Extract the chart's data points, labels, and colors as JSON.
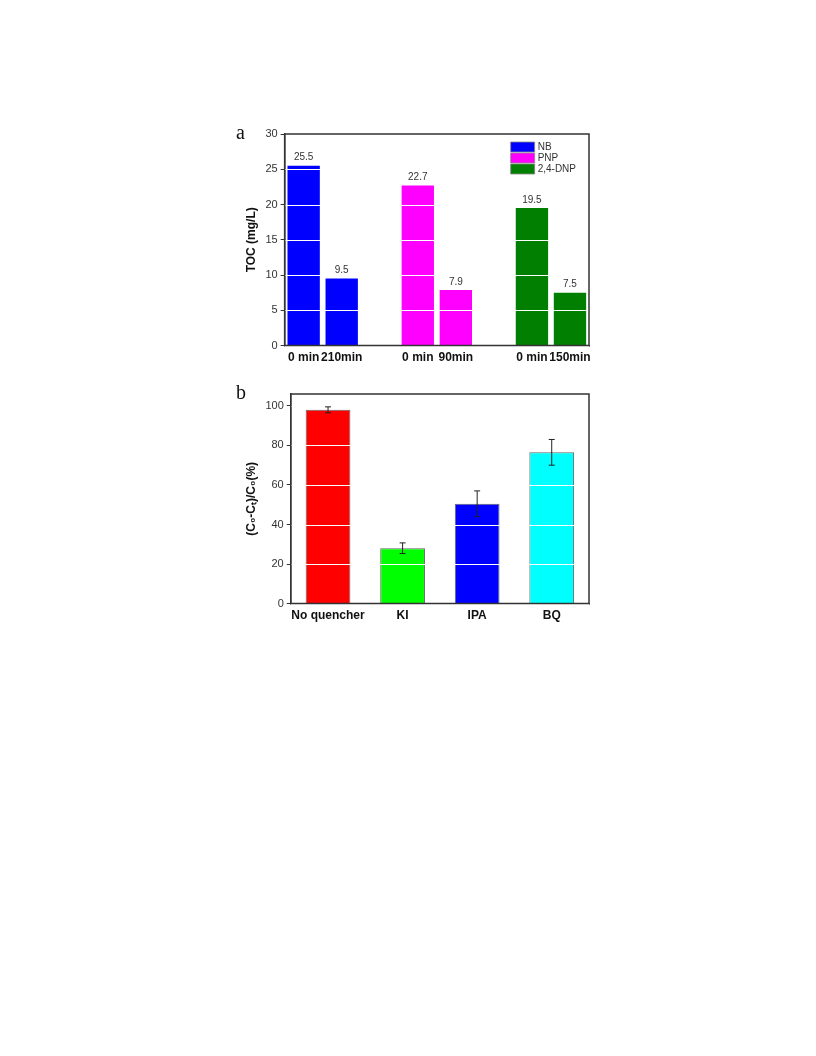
{
  "chart_data": [
    {
      "type": "bar",
      "annotations": [
        "a"
      ],
      "ylabel": "TOC (mg/L)",
      "categories": [
        "0 min",
        "210min",
        null,
        "0 min",
        "90min",
        null,
        "0 min",
        "150min"
      ],
      "series": [
        {
          "name": "NB",
          "color": "#0000ff",
          "values": [
            25.5,
            9.5,
            null,
            null,
            null,
            null,
            null,
            null
          ]
        },
        {
          "name": "PNP",
          "color": "#ff00ff",
          "values": [
            null,
            null,
            null,
            22.7,
            7.9,
            null,
            null,
            null
          ]
        },
        {
          "name": "2,4-DNP",
          "color": "#007f00",
          "values": [
            null,
            null,
            null,
            null,
            null,
            null,
            19.5,
            7.5
          ]
        }
      ],
      "ylim": [
        0,
        30
      ],
      "yticks": [
        0,
        5,
        10,
        15,
        20,
        25,
        30
      ],
      "grid": "y",
      "legend": "top right",
      "data_labels": true
    },
    {
      "type": "bar",
      "annotations": [
        "b"
      ],
      "ylabel": "(C₀-Cₜ)/C₀(%)",
      "categories": [
        "No quencher",
        "KI",
        "IPA",
        "BQ"
      ],
      "values": [
        98,
        28,
        50.5,
        76.5
      ],
      "colors": [
        "#ff0000",
        "#00ff00",
        "#0000ff",
        "#00ffff"
      ],
      "errors": [
        1.5,
        2.7,
        6.5,
        6.5
      ],
      "ylim": [
        0,
        106
      ],
      "yticks": [
        0,
        20,
        40,
        60,
        80,
        100
      ],
      "grid": "y",
      "legend": false
    }
  ]
}
